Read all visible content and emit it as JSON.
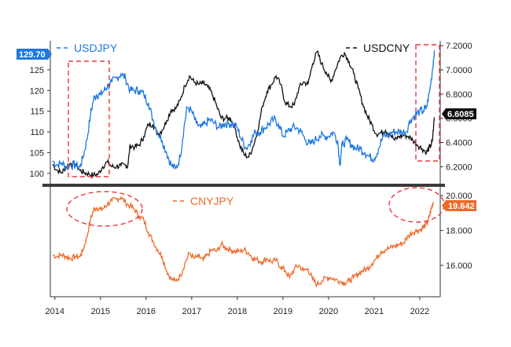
{
  "colors": {
    "usdjpy": "#1f78e0",
    "usdcny": "#111111",
    "cnyjpy": "#ee6a2a",
    "highlight": "#e8383d",
    "divider": "#3a3a3a"
  },
  "chart_data": [
    {
      "type": "line",
      "legend": [
        {
          "label": "USDJPY",
          "axis": "left"
        },
        {
          "label": "USDCNY",
          "axis": "right"
        }
      ],
      "x_ticks": [],
      "y_left_ticks": [
        "100",
        "105",
        "110",
        "115",
        "120",
        "125"
      ],
      "y_left_range": [
        97.5,
        132
      ],
      "y_right_ticks": [
        "6.2000",
        "6.4000",
        "6.6000",
        "6.8000",
        "7.0000",
        "7.2000"
      ],
      "y_right_range": [
        6.06,
        7.24
      ],
      "last_value_tags": [
        {
          "series": "USDJPY",
          "label": "129.70",
          "value": 129.7,
          "axis": "left"
        },
        {
          "series": "USDCNY",
          "label": "6.6085",
          "value": 6.6085,
          "axis": "right"
        }
      ],
      "series": [
        {
          "name": "USDJPY",
          "axis": "left",
          "x": [
            2013.95,
            2014.05,
            2014.15,
            2014.25,
            2014.35,
            2014.45,
            2014.55,
            2014.62,
            2014.7,
            2014.78,
            2014.85,
            2014.92,
            2015.0,
            2015.08,
            2015.15,
            2015.25,
            2015.35,
            2015.45,
            2015.55,
            2015.65,
            2015.75,
            2015.85,
            2015.95,
            2016.05,
            2016.15,
            2016.25,
            2016.35,
            2016.45,
            2016.55,
            2016.65,
            2016.75,
            2016.83,
            2016.9,
            2017.0,
            2017.1,
            2017.2,
            2017.3,
            2017.4,
            2017.5,
            2017.6,
            2017.7,
            2017.8,
            2017.9,
            2018.0,
            2018.1,
            2018.2,
            2018.3,
            2018.4,
            2018.5,
            2018.6,
            2018.7,
            2018.8,
            2018.9,
            2019.0,
            2019.1,
            2019.2,
            2019.3,
            2019.4,
            2019.5,
            2019.6,
            2019.7,
            2019.8,
            2019.9,
            2020.0,
            2020.1,
            2020.2,
            2020.25,
            2020.3,
            2020.4,
            2020.5,
            2020.6,
            2020.7,
            2020.8,
            2020.9,
            2021.0,
            2021.1,
            2021.2,
            2021.3,
            2021.4,
            2021.5,
            2021.6,
            2021.7,
            2021.8,
            2021.9,
            2022.0,
            2022.08,
            2022.15,
            2022.22,
            2022.28,
            2022.32
          ],
          "values": [
            103,
            102,
            102.5,
            101.5,
            102,
            102,
            101.5,
            104,
            108,
            114,
            118,
            119,
            119,
            120,
            121,
            122,
            123,
            124,
            123,
            120,
            120,
            120,
            119,
            117,
            113,
            110,
            108,
            105,
            102,
            101,
            104,
            111,
            116,
            115,
            112,
            111,
            112,
            113,
            112,
            111,
            112,
            112,
            112,
            111,
            108,
            106,
            108,
            110,
            110,
            111,
            112,
            113,
            112,
            109,
            110,
            111,
            111,
            110,
            108,
            107,
            108,
            109,
            109,
            109,
            110,
            108,
            102,
            107,
            108,
            107,
            106,
            106,
            105,
            104,
            103.5,
            106,
            109,
            109,
            110,
            110,
            110,
            110,
            113,
            114,
            115,
            115,
            116,
            120,
            125,
            129.7
          ]
        },
        {
          "name": "USDCNY",
          "axis": "right",
          "x": [
            2013.95,
            2014.05,
            2014.15,
            2014.25,
            2014.35,
            2014.45,
            2014.55,
            2014.65,
            2014.75,
            2014.85,
            2014.95,
            2015.05,
            2015.15,
            2015.25,
            2015.35,
            2015.45,
            2015.55,
            2015.6,
            2015.65,
            2015.75,
            2015.85,
            2015.95,
            2016.05,
            2016.15,
            2016.25,
            2016.35,
            2016.45,
            2016.55,
            2016.65,
            2016.75,
            2016.85,
            2016.95,
            2017.05,
            2017.15,
            2017.25,
            2017.35,
            2017.45,
            2017.55,
            2017.65,
            2017.75,
            2017.85,
            2017.95,
            2018.05,
            2018.15,
            2018.25,
            2018.35,
            2018.45,
            2018.55,
            2018.65,
            2018.75,
            2018.85,
            2018.95,
            2019.05,
            2019.15,
            2019.25,
            2019.35,
            2019.45,
            2019.55,
            2019.65,
            2019.75,
            2019.85,
            2019.95,
            2020.05,
            2020.15,
            2020.25,
            2020.35,
            2020.45,
            2020.55,
            2020.65,
            2020.75,
            2020.85,
            2020.95,
            2021.05,
            2021.15,
            2021.25,
            2021.35,
            2021.45,
            2021.55,
            2021.65,
            2021.75,
            2021.85,
            2021.95,
            2022.05,
            2022.15,
            2022.2,
            2022.25,
            2022.28,
            2022.32
          ],
          "values": [
            6.22,
            6.17,
            6.15,
            6.2,
            6.23,
            6.22,
            6.17,
            6.15,
            6.14,
            6.13,
            6.14,
            6.2,
            6.24,
            6.2,
            6.2,
            6.21,
            6.21,
            6.21,
            6.38,
            6.36,
            6.38,
            6.45,
            6.55,
            6.55,
            6.47,
            6.5,
            6.58,
            6.67,
            6.68,
            6.75,
            6.87,
            6.95,
            6.9,
            6.88,
            6.89,
            6.86,
            6.8,
            6.7,
            6.6,
            6.6,
            6.6,
            6.52,
            6.38,
            6.3,
            6.28,
            6.37,
            6.5,
            6.7,
            6.82,
            6.88,
            6.95,
            6.88,
            6.73,
            6.7,
            6.71,
            6.85,
            6.9,
            6.88,
            7.05,
            7.15,
            7.05,
            6.98,
            6.9,
            7.0,
            7.1,
            7.14,
            7.07,
            6.97,
            6.85,
            6.72,
            6.62,
            6.55,
            6.47,
            6.48,
            6.5,
            6.47,
            6.42,
            6.45,
            6.46,
            6.45,
            6.42,
            6.38,
            6.35,
            6.32,
            6.35,
            6.38,
            6.42,
            6.6085
          ]
        }
      ]
    },
    {
      "type": "line",
      "legend": [
        {
          "label": "CNYJPY",
          "axis": "right"
        }
      ],
      "x_ticks": [
        "2014",
        "2015",
        "2016",
        "2017",
        "2018",
        "2019",
        "2020",
        "2021",
        "2022"
      ],
      "y_right_ticks": [
        "16.000",
        "18.000",
        "20.000"
      ],
      "y_right_range": [
        14.2,
        20.5
      ],
      "last_value_tags": [
        {
          "series": "CNYJPY",
          "label": "19.642",
          "value": 19.642,
          "axis": "right"
        }
      ],
      "series": [
        {
          "name": "CNYJPY",
          "axis": "right",
          "x": [
            2013.95,
            2014.05,
            2014.15,
            2014.25,
            2014.35,
            2014.45,
            2014.55,
            2014.62,
            2014.7,
            2014.78,
            2014.85,
            2014.92,
            2015.0,
            2015.08,
            2015.15,
            2015.25,
            2015.35,
            2015.45,
            2015.55,
            2015.65,
            2015.75,
            2015.85,
            2015.95,
            2016.05,
            2016.15,
            2016.25,
            2016.35,
            2016.45,
            2016.55,
            2016.65,
            2016.75,
            2016.85,
            2016.95,
            2017.05,
            2017.15,
            2017.25,
            2017.35,
            2017.45,
            2017.55,
            2017.65,
            2017.75,
            2017.85,
            2017.95,
            2018.05,
            2018.15,
            2018.25,
            2018.35,
            2018.45,
            2018.55,
            2018.65,
            2018.75,
            2018.85,
            2018.95,
            2019.05,
            2019.15,
            2019.25,
            2019.35,
            2019.45,
            2019.55,
            2019.65,
            2019.75,
            2019.85,
            2019.95,
            2020.05,
            2020.15,
            2020.25,
            2020.35,
            2020.45,
            2020.55,
            2020.65,
            2020.75,
            2020.85,
            2020.95,
            2021.05,
            2021.15,
            2021.25,
            2021.35,
            2021.45,
            2021.55,
            2021.65,
            2021.75,
            2021.85,
            2021.95,
            2022.05,
            2022.12,
            2022.18,
            2022.22,
            2022.26,
            2022.3
          ],
          "values": [
            16.6,
            16.5,
            16.6,
            16.5,
            16.4,
            16.5,
            16.5,
            16.9,
            17.6,
            18.6,
            19.2,
            19.3,
            19.2,
            19.3,
            19.5,
            19.7,
            19.8,
            19.9,
            19.6,
            19.4,
            19.2,
            18.8,
            18.6,
            17.9,
            17.4,
            16.9,
            16.5,
            15.7,
            15.2,
            15.1,
            15.4,
            16.1,
            16.7,
            16.4,
            16.5,
            16.3,
            16.6,
            16.9,
            16.8,
            17.2,
            17.0,
            16.9,
            16.8,
            16.8,
            16.9,
            16.7,
            16.4,
            16.3,
            16.2,
            16.4,
            16.2,
            16.3,
            15.9,
            15.7,
            15.3,
            15.8,
            16.0,
            15.7,
            15.8,
            15.2,
            14.9,
            15.1,
            15.3,
            15.3,
            15.2,
            15.1,
            15.0,
            15.1,
            15.3,
            15.5,
            15.7,
            15.8,
            16.1,
            16.4,
            16.8,
            16.9,
            17.0,
            17.1,
            17.2,
            17.3,
            17.7,
            17.9,
            18.0,
            18.1,
            18.3,
            18.5,
            18.9,
            19.3,
            19.642
          ]
        }
      ]
    }
  ]
}
